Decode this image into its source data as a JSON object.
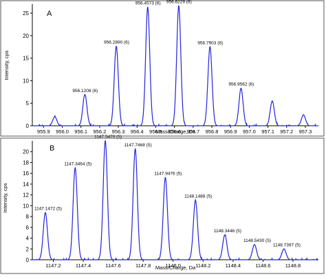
{
  "chart_data": [
    {
      "type": "line",
      "panel_letter": "A",
      "xlabel": "Mass/Charge, Da",
      "ylabel": "Intensity, cps",
      "xlim": [
        955.84,
        957.37
      ],
      "ylim": [
        0,
        27
      ],
      "xticks": [
        955.9,
        956.0,
        956.1,
        956.2,
        956.3,
        956.4,
        956.5,
        956.6,
        956.7,
        956.8,
        956.9,
        957.0,
        957.1,
        957.2,
        957.3
      ],
      "xtick_labels": [
        "955.9",
        "956.0",
        "956.1",
        "956.2",
        "956.3",
        "956.4",
        "956.5",
        "956.6",
        "956.7",
        "956.8",
        "956.9",
        "957.0",
        "957.1",
        "957.2",
        "957.3"
      ],
      "yticks": [
        0,
        5,
        10,
        15,
        20,
        25
      ],
      "ytick_labels": [
        "0",
        "5",
        "10",
        "15",
        "20",
        "25"
      ],
      "line_color": "#2222dd",
      "peaks": [
        {
          "x": 955.96,
          "y": 2.0
        },
        {
          "x": 956.121,
          "y": 6.9,
          "label": "956.1208 (6)"
        },
        {
          "x": 956.289,
          "y": 17.6,
          "label": "956.2890 (6)"
        },
        {
          "x": 956.457,
          "y": 26.3,
          "label": "956.4573 (6)"
        },
        {
          "x": 956.623,
          "y": 26.6,
          "label": "956.6229 (6)"
        },
        {
          "x": 956.79,
          "y": 17.5,
          "label": "956.7903 (6)"
        },
        {
          "x": 956.956,
          "y": 8.3,
          "label": "956.9562 (6)"
        },
        {
          "x": 957.123,
          "y": 5.5
        },
        {
          "x": 957.29,
          "y": 2.4
        }
      ]
    },
    {
      "type": "line",
      "panel_letter": "B",
      "xlabel": "Mass/Charge, Da",
      "ylabel": "Intensity, cps",
      "xlim": [
        1147.06,
        1148.97
      ],
      "ylim": [
        0,
        22
      ],
      "xticks": [
        1147.2,
        1147.4,
        1147.6,
        1147.8,
        1148.0,
        1148.2,
        1148.4,
        1148.6,
        1148.8
      ],
      "xtick_labels": [
        "1147.2",
        "1147.4",
        "1147.6",
        "1147.8",
        "1148.0",
        "1148.2",
        "1148.4",
        "1148.6",
        "1148.8"
      ],
      "yticks": [
        0,
        2,
        4,
        6,
        8,
        10,
        12,
        14,
        16,
        18,
        20
      ],
      "ytick_labels": [
        "0",
        "2",
        "4",
        "6",
        "8",
        "10",
        "12",
        "14",
        "16",
        "18",
        "20"
      ],
      "line_color": "#2222dd",
      "peaks": [
        {
          "x": 1147.147,
          "y": 8.7,
          "label": "1147.1472 (5)"
        },
        {
          "x": 1147.346,
          "y": 17.0,
          "label": "1147.3464 (5)"
        },
        {
          "x": 1147.547,
          "y": 22.0,
          "label": "1147.5470 (5)"
        },
        {
          "x": 1147.747,
          "y": 20.5,
          "label": "1147.7468 (5)"
        },
        {
          "x": 1147.948,
          "y": 15.2,
          "label": "1147.9476 (5)"
        },
        {
          "x": 1148.149,
          "y": 11.0,
          "label": "1148.1488 (5)"
        },
        {
          "x": 1148.345,
          "y": 4.6,
          "label": "1148.3446 (5)"
        },
        {
          "x": 1148.543,
          "y": 2.8,
          "label": "1148.5430 (5)"
        },
        {
          "x": 1148.74,
          "y": 2.0,
          "label": "1148.7397 (5)"
        }
      ]
    }
  ]
}
